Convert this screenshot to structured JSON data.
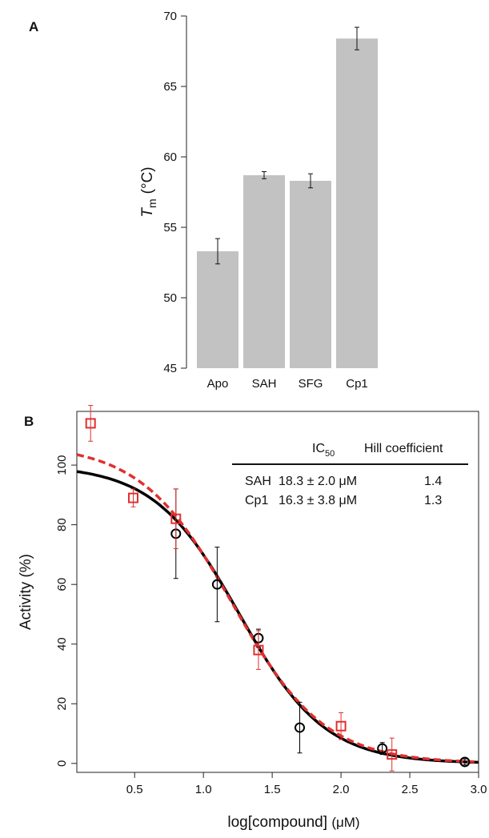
{
  "chart_data": [
    {
      "panel": "A",
      "type": "bar",
      "categories": [
        "Apo",
        "SAH",
        "SFG",
        "Cp1"
      ],
      "values": [
        53.3,
        58.7,
        58.3,
        68.4
      ],
      "errors": [
        0.9,
        0.25,
        0.5,
        0.8
      ],
      "ylabel": {
        "main": "T",
        "sub": "m",
        "unit": "(°C)"
      },
      "ylim": [
        45,
        70
      ],
      "yticks": [
        45,
        50,
        55,
        60,
        65,
        70
      ],
      "bar_color": "#c2c2c2"
    },
    {
      "panel": "B",
      "type": "scatter",
      "xlabel": {
        "main": "log[compound] ",
        "unit": "(μM)"
      },
      "ylabel": "Activity (%)",
      "xlim": [
        0.08,
        3.0
      ],
      "ylim": [
        -3,
        118
      ],
      "xticks": [
        0.5,
        1.0,
        1.5,
        2.0,
        2.5,
        3.0
      ],
      "xtick_labels": [
        "0.5",
        "1.0",
        "1.5",
        "2.0",
        "2.5",
        "3.0"
      ],
      "yticks": [
        0,
        20,
        40,
        60,
        80,
        100
      ],
      "series": [
        {
          "name": "SAH",
          "color": "#000000",
          "marker": "circle",
          "x": [
            0.8,
            1.1,
            1.4,
            1.7,
            2.3,
            2.9
          ],
          "y": [
            77,
            60,
            42,
            12,
            5,
            0.5
          ],
          "err": [
            15,
            12.5,
            3,
            8.5,
            2,
            1
          ]
        },
        {
          "name": "Cp1",
          "color": "#e03030",
          "marker": "square",
          "x": [
            0.18,
            0.49,
            0.8,
            1.4,
            2.0,
            2.37
          ],
          "y": [
            114,
            89,
            82,
            38,
            12.5,
            3
          ],
          "err": [
            6,
            3,
            10,
            6.5,
            4.5,
            5.5
          ]
        }
      ],
      "fits": [
        {
          "name": "SAH",
          "top": 100,
          "ic50_log": 1.262,
          "hill": 1.4,
          "color": "#000000",
          "dash": "solid"
        },
        {
          "name": "Cp1",
          "top": 107,
          "ic50_log": 1.212,
          "hill": 1.3,
          "color": "#e03030",
          "dash": "dashed"
        }
      ],
      "table": {
        "header_ic50_main": "IC",
        "header_ic50_sub": "50",
        "header_hill": "Hill coefficient",
        "rows": [
          {
            "name": "SAH",
            "ic50": "18.3 ± 2.0 μM",
            "hill": "1.4"
          },
          {
            "name": "Cp1",
            "ic50": "16.3 ± 3.8 μM",
            "hill": "1.3"
          }
        ]
      }
    }
  ]
}
